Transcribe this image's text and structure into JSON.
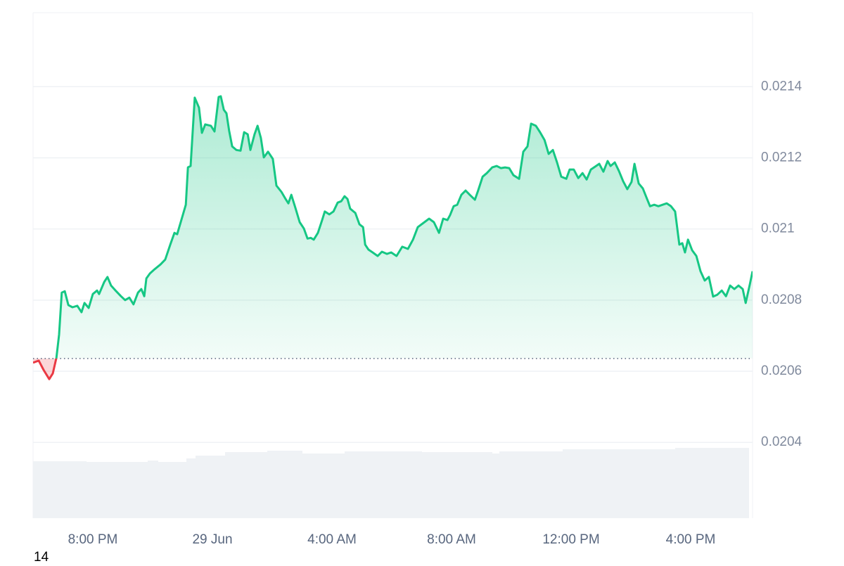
{
  "chart_data": {
    "type": "area",
    "x": [
      0,
      0.19,
      0.35,
      0.54,
      0.66,
      0.78,
      0.87,
      0.96,
      1.06,
      1.18,
      1.32,
      1.48,
      1.62,
      1.72,
      1.86,
      2.0,
      2.14,
      2.21,
      2.38,
      2.49,
      2.61,
      2.78,
      2.94,
      3.08,
      3.22,
      3.36,
      3.51,
      3.62,
      3.72,
      3.79,
      3.91,
      4.07,
      4.26,
      4.42,
      4.59,
      4.73,
      4.82,
      5.01,
      5.11,
      5.18,
      5.27,
      5.41,
      5.55,
      5.65,
      5.76,
      5.95,
      6.07,
      6.21,
      6.28,
      6.38,
      6.47,
      6.56,
      6.66,
      6.8,
      6.94,
      7.06,
      7.18,
      7.27,
      7.41,
      7.51,
      7.62,
      7.72,
      7.86,
      8.02,
      8.14,
      8.31,
      8.45,
      8.54,
      8.64,
      8.78,
      8.92,
      9.06,
      9.18,
      9.29,
      9.39,
      9.53,
      9.67,
      9.76,
      9.91,
      10.05,
      10.19,
      10.31,
      10.42,
      10.52,
      10.61,
      10.78,
      10.92,
      11.04,
      11.11,
      11.22,
      11.36,
      11.53,
      11.67,
      11.84,
      11.98,
      12.16,
      12.35,
      12.54,
      12.71,
      12.87,
      13.06,
      13.25,
      13.41,
      13.58,
      13.72,
      13.86,
      13.95,
      14.07,
      14.19,
      14.33,
      14.47,
      14.61,
      14.78,
      14.89,
      15.04,
      15.18,
      15.36,
      15.51,
      15.65,
      15.79,
      15.93,
      16.07,
      16.26,
      16.4,
      16.54,
      16.66,
      16.82,
      16.96,
      17.11,
      17.25,
      17.39,
      17.53,
      17.67,
      17.84,
      17.95,
      18.09,
      18.24,
      18.38,
      18.52,
      18.66,
      18.8,
      18.94,
      19.08,
      19.22,
      19.32,
      19.46,
      19.6,
      19.74,
      19.88,
      20.02,
      20.12,
      20.26,
      20.4,
      20.54,
      20.64,
      20.78,
      20.92,
      21.06,
      21.2,
      21.34,
      21.48,
      21.62,
      21.72,
      21.81,
      21.91,
      22.05,
      22.19,
      22.33,
      22.47,
      22.61,
      22.75,
      22.89,
      23.04,
      23.18,
      23.32,
      23.46,
      23.6,
      23.74,
      23.84,
      23.98,
      24.07
    ],
    "values": [
      0.020624,
      0.02063,
      0.020604,
      0.020578,
      0.020594,
      0.020638,
      0.020703,
      0.020821,
      0.020825,
      0.020786,
      0.02078,
      0.020784,
      0.020766,
      0.020792,
      0.020778,
      0.020817,
      0.020827,
      0.020817,
      0.020851,
      0.020865,
      0.020841,
      0.020825,
      0.020811,
      0.0208,
      0.020807,
      0.020788,
      0.020821,
      0.020831,
      0.020811,
      0.020861,
      0.020875,
      0.020887,
      0.0209,
      0.020914,
      0.020956,
      0.020989,
      0.020985,
      0.021039,
      0.021068,
      0.021173,
      0.021177,
      0.021369,
      0.021341,
      0.02127,
      0.021294,
      0.02129,
      0.021274,
      0.021371,
      0.021373,
      0.021335,
      0.021325,
      0.021276,
      0.021232,
      0.021222,
      0.02122,
      0.021272,
      0.021266,
      0.021222,
      0.021266,
      0.02129,
      0.021256,
      0.021201,
      0.021217,
      0.021197,
      0.021122,
      0.021104,
      0.021084,
      0.021072,
      0.021096,
      0.021058,
      0.021019,
      0.021001,
      0.020973,
      0.020975,
      0.02097,
      0.020989,
      0.021025,
      0.021049,
      0.021041,
      0.021049,
      0.021074,
      0.021078,
      0.021092,
      0.021084,
      0.021057,
      0.021045,
      0.021013,
      0.021005,
      0.020956,
      0.020942,
      0.020934,
      0.020924,
      0.020936,
      0.02093,
      0.020934,
      0.020924,
      0.02095,
      0.020944,
      0.02097,
      0.021005,
      0.021017,
      0.021029,
      0.021019,
      0.020989,
      0.021029,
      0.021025,
      0.021039,
      0.021064,
      0.021068,
      0.021096,
      0.021108,
      0.021096,
      0.021082,
      0.021108,
      0.021147,
      0.021157,
      0.021173,
      0.021177,
      0.021171,
      0.021173,
      0.021171,
      0.021151,
      0.021141,
      0.021217,
      0.021232,
      0.021296,
      0.02129,
      0.021272,
      0.02125,
      0.021211,
      0.021222,
      0.021187,
      0.021147,
      0.021141,
      0.021167,
      0.021167,
      0.021143,
      0.021157,
      0.021139,
      0.021167,
      0.021175,
      0.021183,
      0.021161,
      0.021191,
      0.021177,
      0.021187,
      0.021163,
      0.021134,
      0.021112,
      0.021132,
      0.021183,
      0.021128,
      0.021114,
      0.021084,
      0.021064,
      0.021068,
      0.021064,
      0.021068,
      0.021072,
      0.021064,
      0.021049,
      0.020956,
      0.02096,
      0.020934,
      0.02097,
      0.02094,
      0.020924,
      0.020881,
      0.020855,
      0.020865,
      0.02081,
      0.020815,
      0.020827,
      0.020811,
      0.020841,
      0.020831,
      0.020841,
      0.020831,
      0.020792,
      0.020845,
      0.020881
    ],
    "baseline": 0.020636,
    "up_color": "#16c784",
    "down_color": "#ea3943",
    "xlim": [
      0,
      24.07
    ],
    "xticks": [
      {
        "value": 2,
        "label": "8:00 PM"
      },
      {
        "value": 6,
        "label": "29 Jun"
      },
      {
        "value": 10,
        "label": "4:00 AM"
      },
      {
        "value": 14,
        "label": "8:00 AM"
      },
      {
        "value": 18,
        "label": "12:00 PM"
      },
      {
        "value": 22,
        "label": "4:00 PM"
      }
    ],
    "ylim": [
      0.020187,
      0.021608
    ],
    "yticks": [
      0.0204,
      0.0206,
      0.0208,
      0.021,
      0.0212,
      0.0214
    ],
    "grid": true
  },
  "corner_label": "14"
}
